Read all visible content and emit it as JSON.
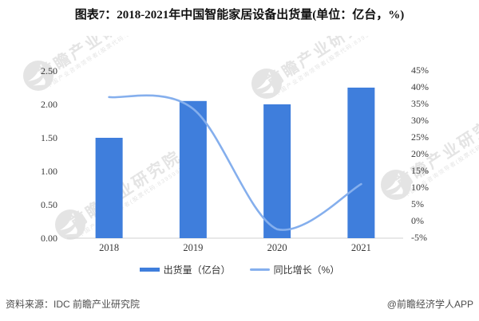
{
  "title": "图表7：2018-2021年中国智能家居设备出货量(单位：亿台，%)",
  "chart_data": {
    "type": "combo-bar-line",
    "title": "图表7：2018-2021年中国智能家居设备出货量(单位：亿台，%)",
    "categories": [
      "2018",
      "2019",
      "2020",
      "2021"
    ],
    "series": [
      {
        "name": "出货量（亿台）",
        "render": "bar",
        "axis": "left",
        "color": "#3F7EDC",
        "values": [
          1.5,
          2.05,
          2.0,
          2.25
        ]
      },
      {
        "name": "同比增长（%）",
        "render": "line",
        "axis": "right",
        "color": "#85AFED",
        "values": [
          37.0,
          33.5,
          -2.5,
          11.0
        ]
      }
    ],
    "left_axis": {
      "min": 0,
      "max": 2.5,
      "step": 0.5,
      "format": "two-decimals"
    },
    "right_axis": {
      "min": -5,
      "max": 45,
      "step": 5,
      "suffix": "%"
    },
    "grid": false,
    "legend_position": "bottom",
    "axis_line_color": "#d9d9d9"
  },
  "legend": {
    "items": [
      {
        "label": "出货量（亿台）",
        "swatch": "bar",
        "color": "#3F7EDC"
      },
      {
        "label": "同比增长（%）",
        "swatch": "line",
        "color": "#85AFED"
      }
    ]
  },
  "footer": {
    "source": "资料来源：IDC 前瞻产业研究院",
    "credit": "@前瞻经济学人APP"
  },
  "watermark": {
    "brand": "前瞻产业研究院",
    "tagline": "中国产业咨询领导者(股票代码:839599)"
  }
}
